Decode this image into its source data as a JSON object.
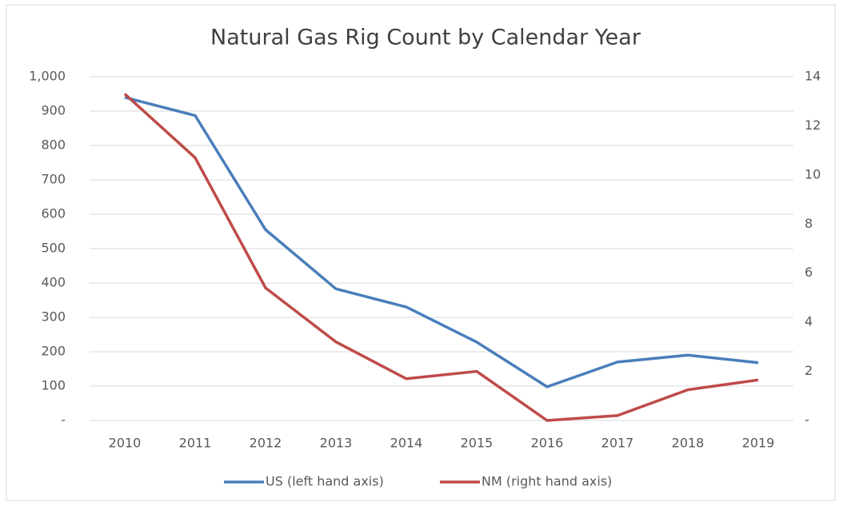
{
  "chart_data": {
    "type": "line",
    "title": "Natural Gas Rig Count by Calendar Year",
    "categories": [
      "2010",
      "2011",
      "2012",
      "2013",
      "2014",
      "2015",
      "2016",
      "2017",
      "2018",
      "2019"
    ],
    "series": [
      {
        "name": "US (left hand axis)",
        "color": "#4a7ebb",
        "values": [
          940,
          887,
          555,
          383,
          330,
          228,
          98,
          170,
          190,
          168
        ]
      },
      {
        "name": "NM (right hand axis)",
        "color": "#be4b48",
        "axis": "y2",
        "values": [
          13.3,
          10.7,
          5.4,
          3.2,
          1.7,
          2.0,
          0,
          0.2,
          1.25,
          1.65
        ]
      }
    ],
    "ylim": [
      0,
      1000
    ],
    "yticks": [
      {
        "value": 0,
        "label": "-"
      },
      100,
      200,
      300,
      400,
      500,
      600,
      700,
      800,
      900,
      {
        "value": 1000,
        "label": "1,000"
      }
    ],
    "y2lim": [
      0,
      14
    ],
    "y2ticks": [
      {
        "value": 0,
        "label": "-"
      },
      2,
      4,
      6,
      8,
      10,
      12,
      14
    ],
    "grid": true,
    "legend": "bottom"
  }
}
